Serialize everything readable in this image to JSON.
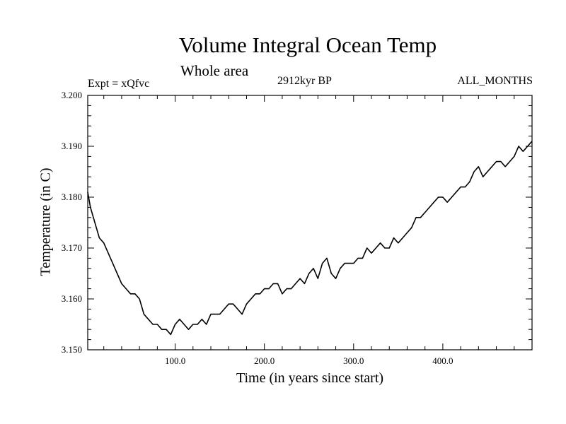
{
  "chart_data": {
    "type": "line",
    "title": "Volume Integral Ocean Temp",
    "subtitle": "Whole area",
    "annotations": {
      "experiment": "Expt = xQfvc",
      "period": "2912kyr BP",
      "months": "ALL_MONTHS"
    },
    "xlabel": "Time (in years since start)",
    "ylabel": "Temperature (in C)",
    "xlim": [
      2,
      500
    ],
    "ylim": [
      3.15,
      3.2
    ],
    "xticks": [
      100,
      200,
      300,
      400
    ],
    "xtick_labels": [
      "100.0",
      "200.0",
      "300.0",
      "400.0"
    ],
    "yticks": [
      3.15,
      3.16,
      3.17,
      3.18,
      3.19,
      3.2
    ],
    "ytick_labels": [
      "3.150",
      "3.160",
      "3.170",
      "3.180",
      "3.190",
      "3.200"
    ],
    "grid": false,
    "series": [
      {
        "name": "Volume integral ocean temperature",
        "color": "#000000",
        "x": [
          2,
          5,
          10,
          15,
          20,
          25,
          30,
          35,
          40,
          45,
          50,
          55,
          60,
          65,
          70,
          75,
          80,
          85,
          90,
          95,
          100,
          105,
          110,
          115,
          120,
          125,
          130,
          135,
          140,
          145,
          150,
          155,
          160,
          165,
          170,
          175,
          180,
          185,
          190,
          195,
          200,
          205,
          210,
          215,
          220,
          225,
          230,
          235,
          240,
          245,
          250,
          255,
          260,
          265,
          270,
          275,
          280,
          285,
          290,
          295,
          300,
          305,
          310,
          315,
          320,
          325,
          330,
          335,
          340,
          345,
          350,
          355,
          360,
          365,
          370,
          375,
          380,
          385,
          390,
          395,
          400,
          405,
          410,
          415,
          420,
          425,
          430,
          435,
          440,
          445,
          450,
          455,
          460,
          465,
          470,
          475,
          480,
          485,
          490,
          495,
          500
        ],
        "values": [
          3.181,
          3.178,
          3.175,
          3.172,
          3.171,
          3.169,
          3.167,
          3.165,
          3.163,
          3.162,
          3.161,
          3.161,
          3.16,
          3.157,
          3.156,
          3.155,
          3.155,
          3.154,
          3.154,
          3.153,
          3.155,
          3.156,
          3.155,
          3.154,
          3.155,
          3.155,
          3.156,
          3.155,
          3.157,
          3.157,
          3.157,
          3.158,
          3.159,
          3.159,
          3.158,
          3.157,
          3.159,
          3.16,
          3.161,
          3.161,
          3.162,
          3.162,
          3.163,
          3.163,
          3.161,
          3.162,
          3.162,
          3.163,
          3.164,
          3.163,
          3.165,
          3.166,
          3.164,
          3.167,
          3.168,
          3.165,
          3.164,
          3.166,
          3.167,
          3.167,
          3.167,
          3.168,
          3.168,
          3.17,
          3.169,
          3.17,
          3.171,
          3.17,
          3.17,
          3.172,
          3.171,
          3.172,
          3.173,
          3.174,
          3.176,
          3.176,
          3.177,
          3.178,
          3.179,
          3.18,
          3.18,
          3.179,
          3.18,
          3.181,
          3.182,
          3.182,
          3.183,
          3.185,
          3.186,
          3.184,
          3.185,
          3.186,
          3.187,
          3.187,
          3.186,
          3.187,
          3.188,
          3.19,
          3.189,
          3.19,
          3.191
        ]
      }
    ]
  }
}
